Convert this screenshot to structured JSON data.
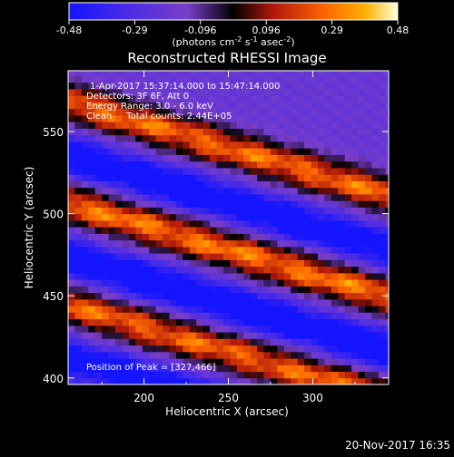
{
  "chart_data": {
    "type": "heatmap",
    "title": "Reconstructed RHESSI Image",
    "xlabel": "Heliocentric X (arcsec)",
    "ylabel": "Heliocentric Y (arcsec)",
    "xlim": [
      155,
      345
    ],
    "ylim": [
      396,
      587
    ],
    "x_ticks": [
      200,
      250,
      300
    ],
    "y_ticks": [
      400,
      450,
      500,
      550
    ],
    "colorbar": {
      "min": -0.48,
      "max": 0.48,
      "ticks": [
        "-0.48",
        "-0.29",
        "-0.096",
        "0.096",
        "0.29",
        "0.48"
      ],
      "unit_label": "(photons cm",
      "unit_exp1": "-2",
      "unit_mid": " s",
      "unit_exp2": "-1",
      "unit_mid2": " asec",
      "unit_exp3": "-2",
      "unit_end": ")",
      "colors": [
        "#1010ff",
        "#5a28d8",
        "#8a3cc0",
        "#000000",
        "#cc2010",
        "#ff8a00",
        "#ffffc8"
      ]
    },
    "bands": [
      {
        "type": "bright",
        "intercept_y": 568,
        "slope": -0.3,
        "amplitude": 0.46
      },
      {
        "type": "dark",
        "intercept_y": 535,
        "slope": -0.3,
        "amplitude": -0.4
      },
      {
        "type": "bright",
        "intercept_y": 506,
        "slope": -0.3,
        "amplitude": 0.48
      },
      {
        "type": "dark",
        "intercept_y": 473,
        "slope": -0.3,
        "amplitude": -0.42
      },
      {
        "type": "bright",
        "intercept_y": 444,
        "slope": -0.3,
        "amplitude": 0.45
      },
      {
        "type": "dark",
        "intercept_y": 412,
        "slope": -0.3,
        "amplitude": -0.38
      }
    ],
    "peak": [
      327,
      466
    ],
    "annotations": {
      "time_range": "1-Apr-2017 15:37:14.000 to 15:47:14.000",
      "detectors": "Detectors: 3F 6F, Att 0",
      "energy": "Energy Range: 3.0 - 6.0 keV",
      "method": "Clean     Total counts: 2.44E+05",
      "peak_text": "Position of Peak = [327,466]"
    }
  },
  "footer": {
    "date": "20-Nov-2017 16:35"
  }
}
